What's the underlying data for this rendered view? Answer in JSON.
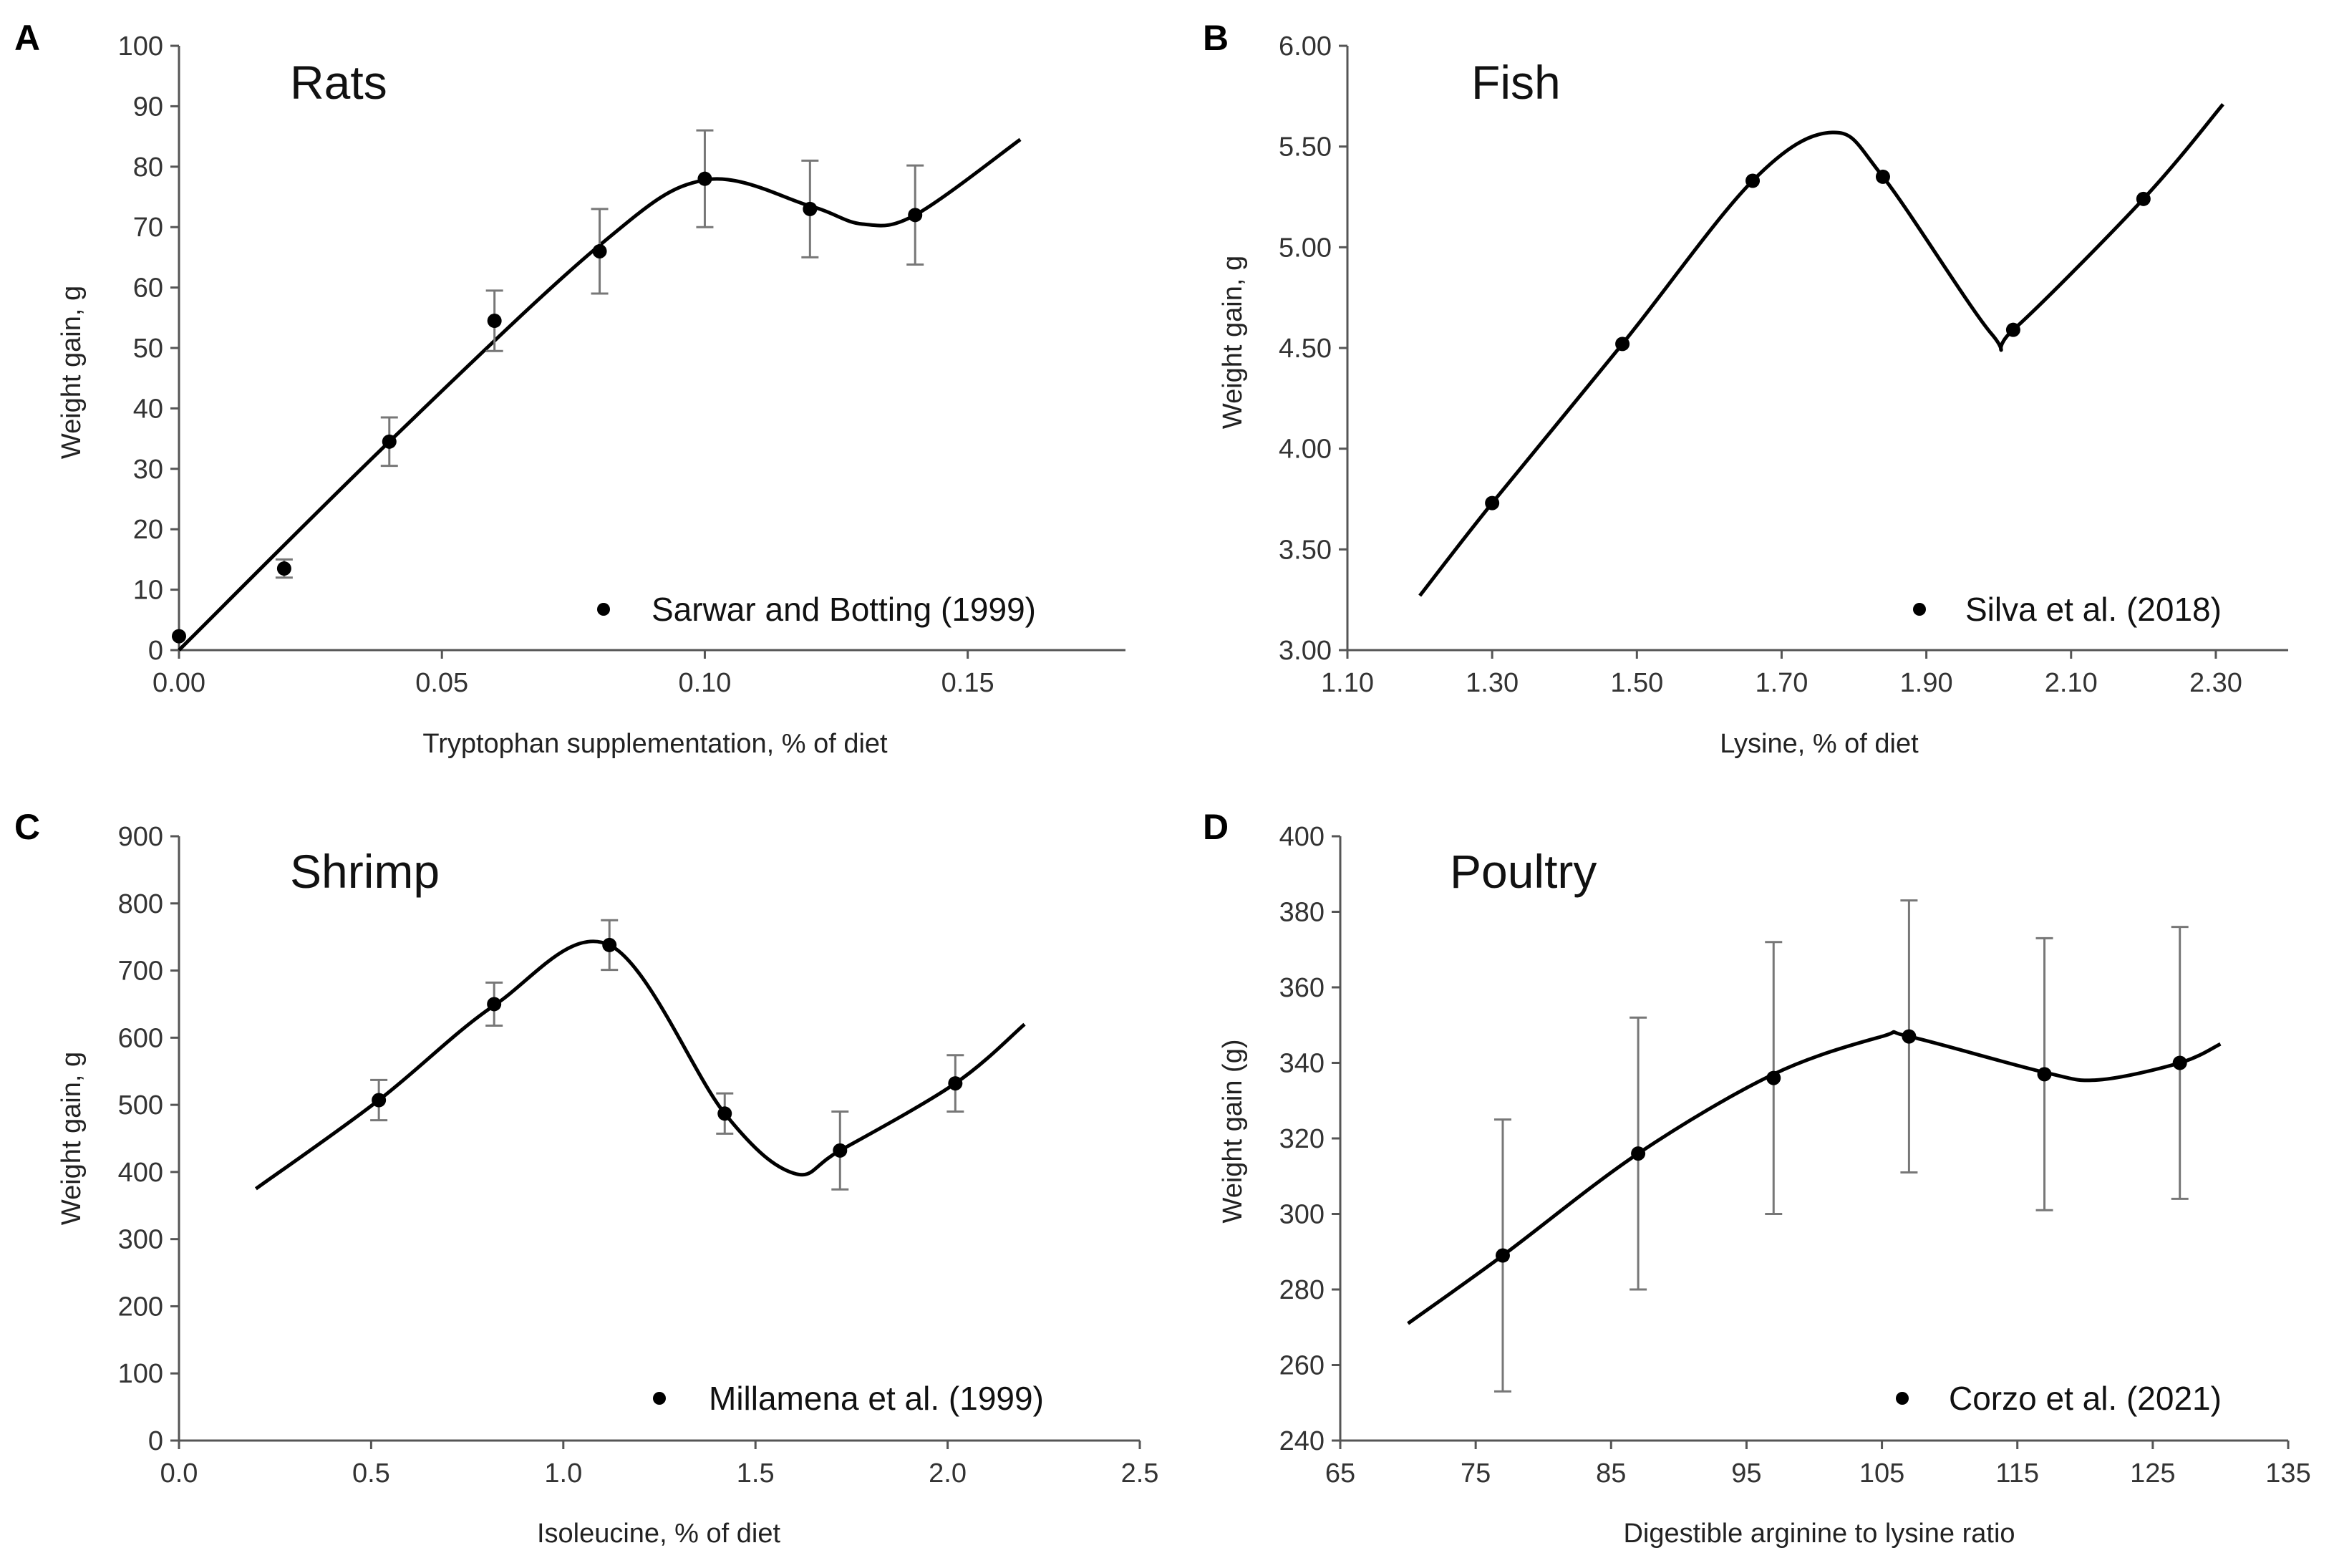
{
  "chart_data": [
    {
      "type": "scatter",
      "panel": "A",
      "title": "Rats",
      "xlabel": "Tryptophan supplementation, % of diet",
      "ylabel": "Weight gain, g",
      "xlim": [
        0,
        0.18
      ],
      "ylim": [
        0,
        100
      ],
      "xticks": [
        0,
        0.05,
        0.1,
        0.15
      ],
      "xtick_labels": [
        "0.00",
        "0.05",
        "0.10",
        "0.15"
      ],
      "yticks": [
        0,
        10,
        20,
        30,
        40,
        50,
        60,
        70,
        80,
        90,
        100
      ],
      "ytick_labels": [
        "0",
        "10",
        "20",
        "30",
        "40",
        "50",
        "60",
        "70",
        "80",
        "90",
        "100"
      ],
      "legend": "Sarwar and Botting (1999)",
      "legend_position": "bottom-right",
      "grid": false,
      "points": [
        {
          "x": 0.0,
          "y": 2.3,
          "err": 0
        },
        {
          "x": 0.02,
          "y": 13.5,
          "err": 1.5
        },
        {
          "x": 0.04,
          "y": 34.5,
          "err": 4
        },
        {
          "x": 0.06,
          "y": 54.5,
          "err": 5
        },
        {
          "x": 0.08,
          "y": 66,
          "err": 7
        },
        {
          "x": 0.1,
          "y": 78,
          "err": 8
        },
        {
          "x": 0.12,
          "y": 73,
          "err": 8
        },
        {
          "x": 0.14,
          "y": 72,
          "err": 8.2
        }
      ],
      "fit_curve": [
        [
          0.0,
          0
        ],
        [
          0.04,
          34.5
        ],
        [
          0.08,
          67
        ],
        [
          0.1,
          77.8
        ],
        [
          0.12,
          73.5
        ],
        [
          0.13,
          70.5
        ],
        [
          0.14,
          72
        ],
        [
          0.16,
          84.5
        ]
      ]
    },
    {
      "type": "scatter",
      "panel": "B",
      "title": "Fish",
      "xlabel": "Lysine, % of diet",
      "ylabel": "Weight gain, g",
      "xlim": [
        1.1,
        2.4
      ],
      "ylim": [
        3.0,
        6.0
      ],
      "xticks": [
        1.1,
        1.3,
        1.5,
        1.7,
        1.9,
        2.1,
        2.3
      ],
      "xtick_labels": [
        "1.10",
        "1.30",
        "1.50",
        "1.70",
        "1.90",
        "2.10",
        "2.30"
      ],
      "yticks": [
        3.0,
        3.5,
        4.0,
        4.5,
        5.0,
        5.5,
        6.0
      ],
      "ytick_labels": [
        "3.00",
        "3.50",
        "4.00",
        "4.50",
        "5.00",
        "5.50",
        "6.00"
      ],
      "legend": "Silva et al. (2018)",
      "legend_position": "bottom-right",
      "grid": false,
      "points": [
        {
          "x": 1.3,
          "y": 3.73
        },
        {
          "x": 1.48,
          "y": 4.52
        },
        {
          "x": 1.66,
          "y": 5.33
        },
        {
          "x": 1.84,
          "y": 5.35
        },
        {
          "x": 2.02,
          "y": 4.59
        },
        {
          "x": 2.2,
          "y": 5.24
        }
      ],
      "fit_curve": [
        [
          1.2,
          3.27
        ],
        [
          1.3,
          3.73
        ],
        [
          1.48,
          4.52
        ],
        [
          1.66,
          5.33
        ],
        [
          1.77,
          5.57
        ],
        [
          1.84,
          5.35
        ],
        [
          1.99,
          4.57
        ],
        [
          2.02,
          4.59
        ],
        [
          2.2,
          5.24
        ],
        [
          2.31,
          5.71
        ]
      ]
    },
    {
      "type": "scatter",
      "panel": "C",
      "title": "Shrimp",
      "xlabel": "Isoleucine, % of diet",
      "ylabel": "Weight gain, g",
      "xlim": [
        0,
        2.5
      ],
      "ylim": [
        0,
        900
      ],
      "xticks": [
        0,
        0.5,
        1.0,
        1.5,
        2.0,
        2.5
      ],
      "xtick_labels": [
        "0.0",
        "0.5",
        "1.0",
        "1.5",
        "2.0",
        "2.5"
      ],
      "yticks": [
        0,
        100,
        200,
        300,
        400,
        500,
        600,
        700,
        800,
        900
      ],
      "ytick_labels": [
        "0",
        "100",
        "200",
        "300",
        "400",
        "500",
        "600",
        "700",
        "800",
        "900"
      ],
      "legend": "Millamena et al. (1999)",
      "legend_position": "bottom-right",
      "grid": false,
      "points": [
        {
          "x": 0.52,
          "y": 507,
          "err": 30
        },
        {
          "x": 0.82,
          "y": 650,
          "err": 32
        },
        {
          "x": 1.12,
          "y": 738,
          "err": 37
        },
        {
          "x": 1.42,
          "y": 487,
          "err": 30
        },
        {
          "x": 1.72,
          "y": 432,
          "err": 58
        },
        {
          "x": 2.02,
          "y": 532,
          "err": 42
        }
      ],
      "fit_curve": [
        [
          0.2,
          375
        ],
        [
          0.52,
          507
        ],
        [
          0.82,
          648
        ],
        [
          1.12,
          738
        ],
        [
          1.42,
          487
        ],
        [
          1.6,
          398
        ],
        [
          1.72,
          432
        ],
        [
          2.02,
          532
        ],
        [
          2.2,
          620
        ]
      ]
    },
    {
      "type": "scatter",
      "panel": "D",
      "title": "Poultry",
      "xlabel": "Digestible arginine to lysine ratio",
      "ylabel": "Weight gain (g)",
      "xlim": [
        65,
        135
      ],
      "ylim": [
        240,
        400
      ],
      "xticks": [
        65,
        75,
        85,
        95,
        105,
        115,
        125,
        135
      ],
      "xtick_labels": [
        "65",
        "75",
        "85",
        "95",
        "105",
        "115",
        "125",
        "135"
      ],
      "yticks": [
        240,
        260,
        280,
        300,
        320,
        340,
        360,
        380,
        400
      ],
      "ytick_labels": [
        "240",
        "260",
        "280",
        "300",
        "320",
        "340",
        "360",
        "380",
        "400"
      ],
      "legend": "Corzo et al. (2021)",
      "legend_position": "bottom-right",
      "grid": false,
      "points": [
        {
          "x": 77,
          "y": 289,
          "err": 36
        },
        {
          "x": 87,
          "y": 316,
          "err": 36
        },
        {
          "x": 97,
          "y": 336,
          "err": 36
        },
        {
          "x": 107,
          "y": 347,
          "err": 36
        },
        {
          "x": 117,
          "y": 337,
          "err": 36
        },
        {
          "x": 127,
          "y": 340,
          "err": 36
        }
      ],
      "fit_curve": [
        [
          70,
          271
        ],
        [
          77,
          289
        ],
        [
          87,
          316
        ],
        [
          97,
          337
        ],
        [
          105,
          347
        ],
        [
          107,
          347
        ],
        [
          117,
          337.5
        ],
        [
          121,
          335.5
        ],
        [
          127,
          340
        ],
        [
          130,
          345
        ]
      ]
    }
  ]
}
